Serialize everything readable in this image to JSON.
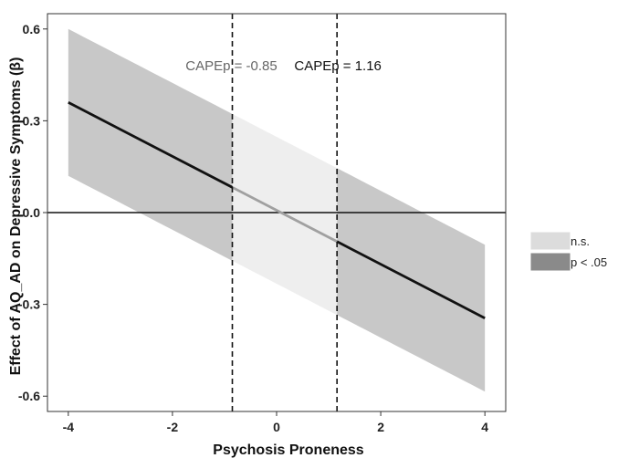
{
  "chart_data": {
    "type": "line",
    "xlabel": "Psychosis Proneness",
    "ylabel": "Effect of AQ_AD on Depressive Symptoms (β)",
    "xlim": [
      -4.4,
      4.4
    ],
    "ylim": [
      -0.65,
      0.65
    ],
    "x_ticks": [
      -4,
      -2,
      0,
      2,
      4
    ],
    "x_tick_labels": [
      "-4",
      "-2",
      "0",
      "2",
      "4"
    ],
    "y_ticks": [
      -0.6,
      -0.3,
      0.0,
      0.3,
      0.6
    ],
    "y_tick_labels": [
      "-0.6",
      "-0.3",
      "0.0",
      "0.3",
      "0.6"
    ],
    "grid": false,
    "legend_position": "right",
    "series": [
      {
        "x": [
          -4,
          4
        ],
        "estimate": [
          0.36,
          -0.345
        ],
        "ci_lower": [
          0.12,
          -0.585
        ],
        "ci_upper": [
          0.6,
          -0.105
        ]
      }
    ],
    "reference_lines": {
      "horizontal_y": 0.0,
      "vertical_x": [
        -0.85,
        1.16
      ]
    },
    "annotations": [
      {
        "text": "CAPEp = -0.85",
        "x": -0.85,
        "color": "#666666"
      },
      {
        "text": "CAPEp = 1.16",
        "x": 1.16,
        "color": "#111111"
      }
    ],
    "legend": [
      {
        "label": "n.s.",
        "color": "#dcdcdc"
      },
      {
        "label": "p < .05",
        "color": "#8a8a8a"
      }
    ],
    "colors": {
      "significant_band": "#c8c8c8",
      "ns_band": "#eeeeee",
      "significant_line": "#111111",
      "ns_line": "#a0a0a0"
    }
  }
}
